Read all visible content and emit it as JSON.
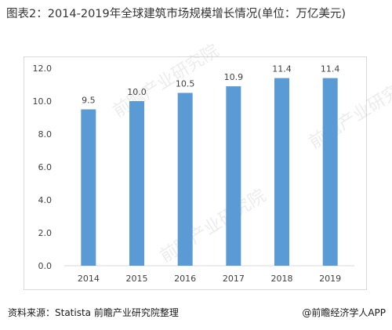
{
  "title": "图表2：2014-2019年全球建筑市场规模增长情况(单位：万亿美元)",
  "footer": {
    "source": "资料来源：Statista 前瞻产业研究院整理",
    "brand": "@前瞻经济学人APP"
  },
  "watermark": "前瞻产业研究院",
  "chart_data": {
    "type": "bar",
    "title": "图表2：2014-2019年全球建筑市场规模增长情况(单位：万亿美元)",
    "categories": [
      "2014",
      "2015",
      "2016",
      "2017",
      "2018",
      "2019"
    ],
    "values": [
      9.5,
      10.0,
      10.5,
      10.9,
      11.4,
      11.4
    ],
    "data_labels": [
      "9.5",
      "10.0",
      "10.5",
      "10.9",
      "11.4",
      "11.4"
    ],
    "yticks": [
      "0.0",
      "2.0",
      "4.0",
      "6.0",
      "8.0",
      "10.0",
      "12.0"
    ],
    "ylim": [
      0,
      12
    ],
    "grid": false,
    "legend": "none",
    "bar_color": "#5b9bd5"
  }
}
